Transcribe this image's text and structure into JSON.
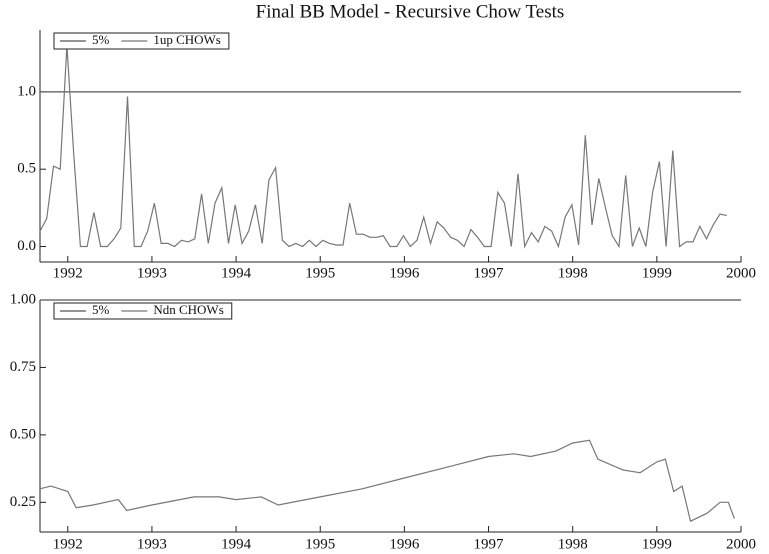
{
  "chart_data": [
    {
      "type": "line",
      "title": "Final BB Model - Recursive Chow Tests",
      "xlim": [
        1991.67,
        2000
      ],
      "xticks": [
        1992,
        1993,
        1994,
        1995,
        1996,
        1997,
        1998,
        1999,
        2000
      ],
      "ylim": [
        -0.1,
        1.4
      ],
      "yticks": [
        {
          "value": 0,
          "label": "0.0"
        },
        {
          "value": 0.5,
          "label": "0.5"
        },
        {
          "value": 1,
          "label": "1.0"
        }
      ],
      "legend": "top-left",
      "series": [
        {
          "name": "5%",
          "color": "#555555",
          "x": [
            1991.67,
            2000
          ],
          "values": [
            1,
            1
          ]
        },
        {
          "name": "1up CHOWs",
          "color": "#777777",
          "x": [
            1991.67,
            1991.75,
            1991.83,
            1991.91,
            1991.99,
            1992.07,
            1992.15,
            1992.23,
            1992.31,
            1992.39,
            1992.47,
            1992.55,
            1992.63,
            1992.71,
            1992.79,
            1992.87,
            1992.95,
            1993.03,
            1993.11,
            1993.19,
            1993.27,
            1993.35,
            1993.43,
            1993.51,
            1993.59,
            1993.67,
            1993.75,
            1993.83,
            1993.91,
            1993.99,
            1994.07,
            1994.15,
            1994.23,
            1994.31,
            1994.39,
            1994.47,
            1994.55,
            1994.63,
            1994.71,
            1994.79,
            1994.87,
            1994.95,
            1995.03,
            1995.11,
            1995.19,
            1995.27,
            1995.35,
            1995.43,
            1995.51,
            1995.59,
            1995.67,
            1995.75,
            1995.83,
            1995.91,
            1995.99,
            1996.07,
            1996.15,
            1996.23,
            1996.31,
            1996.39,
            1996.47,
            1996.55,
            1996.63,
            1996.71,
            1996.79,
            1996.87,
            1996.95,
            1997.03,
            1997.11,
            1997.19,
            1997.27,
            1997.35,
            1997.43,
            1997.51,
            1997.59,
            1997.67,
            1997.75,
            1997.83,
            1997.91,
            1997.99,
            1998.07,
            1998.15,
            1998.23,
            1998.31,
            1998.39,
            1998.47,
            1998.55,
            1998.63,
            1998.71,
            1998.79,
            1998.87,
            1998.95,
            1999.03,
            1999.11,
            1999.19,
            1999.27,
            1999.35,
            1999.43,
            1999.51,
            1999.59,
            1999.67,
            1999.75,
            1999.83
          ],
          "values": [
            0.1,
            0.18,
            0.52,
            0.5,
            1.3,
            0.6,
            0,
            0,
            0.22,
            0,
            0,
            0.05,
            0.12,
            0.97,
            0,
            0,
            0.1,
            0.28,
            0.02,
            0.02,
            0,
            0.04,
            0.03,
            0.05,
            0.34,
            0.02,
            0.28,
            0.38,
            0.02,
            0.27,
            0.02,
            0.1,
            0.27,
            0.02,
            0.43,
            0.51,
            0.04,
            0,
            0.02,
            0,
            0.04,
            0,
            0.04,
            0.02,
            0.01,
            0.01,
            0.28,
            0.08,
            0.08,
            0.06,
            0.06,
            0.07,
            0,
            0,
            0.07,
            0,
            0.04,
            0.19,
            0.02,
            0.16,
            0.12,
            0.06,
            0.04,
            0,
            0.11,
            0.06,
            0,
            0,
            0.35,
            0.28,
            0,
            0.47,
            0,
            0.09,
            0.03,
            0.13,
            0.1,
            0,
            0.19,
            0.27,
            0.01,
            0.72,
            0.14,
            0.44,
            0.25,
            0.07,
            0,
            0.46,
            0,
            0.12,
            0,
            0.35,
            0.55,
            0,
            0.62,
            0,
            0.03,
            0.03,
            0.13,
            0.05,
            0.14,
            0.21,
            0.2
          ]
        }
      ]
    },
    {
      "type": "line",
      "xlim": [
        1991.67,
        2000
      ],
      "xticks": [
        1992,
        1993,
        1994,
        1995,
        1996,
        1997,
        1998,
        1999,
        2000
      ],
      "ylim": [
        0.14,
        1
      ],
      "yticks": [
        0.25,
        {
          "value": 0.5,
          "label": "0.50"
        },
        0.75,
        {
          "value": 1,
          "label": "1.00"
        }
      ],
      "legend": "top-left",
      "series": [
        {
          "name": "5%",
          "color": "#555555",
          "x": [
            1991.67,
            2000
          ],
          "values": [
            1,
            1
          ]
        },
        {
          "name": "Ndn CHOWs",
          "color": "#777777",
          "x": [
            1991.67,
            1991.8,
            1992.0,
            1992.1,
            1992.3,
            1992.6,
            1992.7,
            1993.0,
            1993.5,
            1993.8,
            1994.0,
            1994.3,
            1994.5,
            1995.0,
            1995.5,
            1996.0,
            1996.5,
            1997.0,
            1997.3,
            1997.5,
            1997.8,
            1998.0,
            1998.2,
            1998.3,
            1998.6,
            1998.8,
            1999.0,
            1999.1,
            1999.2,
            1999.3,
            1999.4,
            1999.6,
            1999.75,
            1999.85,
            1999.92
          ],
          "values": [
            0.3,
            0.31,
            0.29,
            0.23,
            0.24,
            0.26,
            0.22,
            0.24,
            0.27,
            0.27,
            0.26,
            0.27,
            0.24,
            0.27,
            0.3,
            0.34,
            0.38,
            0.42,
            0.43,
            0.42,
            0.44,
            0.47,
            0.48,
            0.41,
            0.37,
            0.36,
            0.4,
            0.41,
            0.29,
            0.31,
            0.18,
            0.21,
            0.25,
            0.25,
            0.19
          ]
        }
      ]
    }
  ]
}
